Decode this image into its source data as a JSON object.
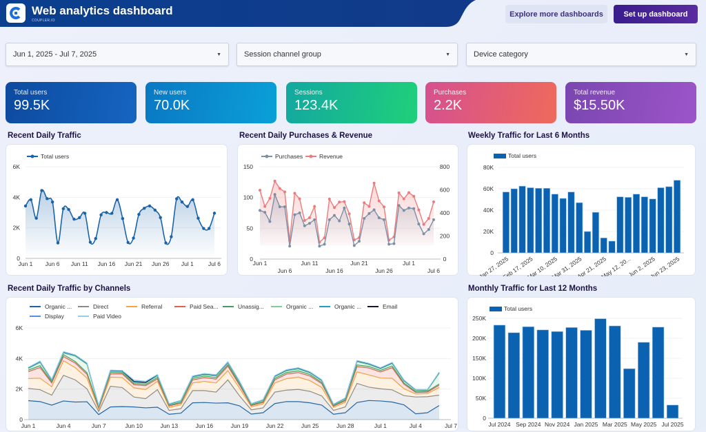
{
  "header": {
    "title": "Web analytics dashboard",
    "brand": "COUPLER.IO",
    "explore_label": "Explore more dashboards",
    "setup_label": "Set up dashboard"
  },
  "filters": [
    {
      "value": "Jun 1, 2025 - Jul 7, 2025"
    },
    {
      "value": "Session channel group"
    },
    {
      "value": "Device category"
    }
  ],
  "kpis": [
    {
      "label": "Total users",
      "value": "99.5K",
      "colors": [
        "#0d4aa0",
        "#1565c0"
      ]
    },
    {
      "label": "New users",
      "value": "70.0K",
      "colors": [
        "#0a78c4",
        "#0aa0d8"
      ]
    },
    {
      "label": "Sessions",
      "value": "123.4K",
      "colors": [
        "#13a8a0",
        "#1fd07a"
      ]
    },
    {
      "label": "Purchases",
      "value": "2.2K",
      "colors": [
        "#d6508f",
        "#ee6a5c"
      ]
    },
    {
      "label": "Total revenue",
      "value": "$15.50K",
      "colors": [
        "#7a46b0",
        "#9c55c8"
      ]
    }
  ],
  "sections": {
    "daily": "Recent Daily Traffic",
    "purch": "Recent Daily Purchases & Revenue",
    "weekly": "Weekly Traffic for Last 6 Months",
    "channels": "Recent Daily Traffic by Channels",
    "monthly": "Monthly Traffic for Last 12 Months"
  },
  "chart_data": [
    {
      "type": "line",
      "id": "daily",
      "series": [
        {
          "name": "Total users",
          "color": "#1a63a8",
          "values": [
            3430,
            3840,
            2630,
            4440,
            3910,
            3690,
            1010,
            3250,
            3200,
            2570,
            2670,
            2950,
            1060,
            1300,
            2850,
            3000,
            2950,
            3840,
            2610,
            1040,
            1330,
            2880,
            3280,
            3430,
            3160,
            2670,
            1010,
            1420,
            3900,
            3690,
            3400,
            3840,
            2630,
            1960,
            1960,
            2960
          ]
        }
      ],
      "x_ticks": [
        "Jun 1",
        "Jun 6",
        "Jun 11",
        "Jun 16",
        "Jun 21",
        "Jun 26",
        "Jul 1",
        "Jul 6"
      ],
      "y_ticks": [
        "0",
        "2K",
        "4K",
        "6K"
      ],
      "ylim": [
        0,
        6000
      ]
    },
    {
      "type": "line",
      "id": "purch",
      "series": [
        {
          "name": "Purchases",
          "color": "#7d8fa6",
          "axis": "left",
          "values": [
            79,
            76,
            61,
            105,
            85,
            85,
            21,
            72,
            75,
            54,
            58,
            64,
            21,
            24,
            64,
            71,
            62,
            83,
            57,
            22,
            29,
            66,
            74,
            80,
            67,
            64,
            24,
            25,
            87,
            79,
            83,
            82,
            57,
            41,
            48,
            64
          ]
        },
        {
          "name": "Revenue",
          "color": "#ee7b7b",
          "axis": "right",
          "values": [
            596,
            456,
            526,
            676,
            612,
            582,
            160,
            570,
            522,
            334,
            358,
            456,
            146,
            184,
            520,
            446,
            494,
            498,
            392,
            166,
            186,
            488,
            456,
            658,
            504,
            452,
            164,
            192,
            574,
            522,
            576,
            544,
            426,
            300,
            352,
            496
          ]
        }
      ],
      "x_ticks": [
        "Jun 1",
        "Jun 6",
        "Jun 11",
        "Jun 16",
        "Jun 21",
        "Jun 26",
        "Jul 1",
        "Jul 6"
      ],
      "y_ticks_left": [
        "0",
        "50",
        "100",
        "150"
      ],
      "y_ticks_right": [
        "0",
        "200",
        "400",
        "600",
        "800"
      ],
      "ylim_left": [
        0,
        150
      ],
      "ylim_right": [
        0,
        800
      ]
    },
    {
      "type": "bar",
      "id": "weekly",
      "series": [
        {
          "name": "Total users",
          "color": "#0a62b0",
          "values": [
            57000,
            60000,
            62500,
            61000,
            60500,
            60500,
            55000,
            51000,
            57000,
            47000,
            20000,
            38000,
            14000,
            11000,
            52500,
            52000,
            55000,
            52500,
            50500,
            61000,
            62000,
            68000
          ]
        }
      ],
      "x_ticks": [
        "Jan 27, 2025",
        "Feb 17, 2025",
        "Mar 10, 2025",
        "Mar 31, 2025",
        "Apr 21, 2025",
        "May 12, 20...",
        "Jun 2, 2025",
        "Jun 23, 2025"
      ],
      "y_ticks": [
        "0",
        "20K",
        "40K",
        "60K",
        "80K"
      ],
      "ylim": [
        0,
        80000
      ]
    },
    {
      "type": "area",
      "stacked": true,
      "id": "channels",
      "series": [
        {
          "name": "Organic ...",
          "color": "#1a63a8",
          "values": [
            1240,
            1180,
            950,
            1220,
            1150,
            1170,
            330,
            830,
            850,
            830,
            770,
            810,
            350,
            420,
            1100,
            1120,
            1080,
            1100,
            900,
            360,
            450,
            1050,
            1180,
            1180,
            1100,
            950,
            350,
            450,
            1120,
            1250,
            1220,
            1150,
            970,
            380,
            450,
            920
          ]
        },
        {
          "name": "Direct",
          "color": "#8a8a8a",
          "values": [
            800,
            780,
            650,
            1680,
            1450,
            850,
            200,
            1350,
            1250,
            650,
            600,
            1150,
            250,
            300,
            800,
            780,
            720,
            1500,
            650,
            280,
            320,
            750,
            750,
            800,
            750,
            600,
            250,
            380,
            1250,
            880,
            800,
            800,
            600,
            1100,
            1050,
            680
          ]
        },
        {
          "name": "Referral",
          "color": "#f0a742",
          "values": [
            650,
            750,
            550,
            950,
            800,
            700,
            150,
            600,
            650,
            600,
            600,
            550,
            200,
            250,
            500,
            600,
            600,
            600,
            500,
            200,
            250,
            600,
            750,
            800,
            700,
            550,
            200,
            300,
            750,
            800,
            700,
            750,
            450,
            200,
            200,
            500
          ]
        },
        {
          "name": "Paid Sea...",
          "color": "#e85d4e",
          "values": [
            450,
            700,
            250,
            280,
            300,
            250,
            100,
            200,
            250,
            200,
            250,
            150,
            100,
            100,
            200,
            250,
            250,
            300,
            200,
            80,
            100,
            200,
            300,
            300,
            300,
            250,
            80,
            100,
            350,
            450,
            400,
            700,
            300,
            100,
            100,
            150
          ]
        },
        {
          "name": "Unassig...",
          "color": "#3f9e5e",
          "values": [
            100,
            120,
            80,
            120,
            100,
            100,
            40,
            100,
            80,
            80,
            80,
            100,
            40,
            60,
            100,
            100,
            100,
            100,
            80,
            40,
            60,
            100,
            100,
            110,
            100,
            80,
            40,
            60,
            110,
            100,
            100,
            110,
            80,
            60,
            60,
            80
          ]
        },
        {
          "name": "Organic ...",
          "color": "#7fcf8e",
          "values": [
            100,
            200,
            80,
            100,
            350,
            550,
            60,
            80,
            60,
            60,
            80,
            100,
            60,
            80,
            80,
            80,
            100,
            100,
            100,
            50,
            80,
            100,
            100,
            120,
            100,
            100,
            50,
            80,
            200,
            120,
            100,
            150,
            120,
            80,
            60,
            700
          ]
        },
        {
          "name": "Organic ...",
          "color": "#19a3c8",
          "values": [
            40,
            60,
            40,
            60,
            50,
            50,
            20,
            40,
            40,
            60,
            40,
            50,
            20,
            30,
            40,
            50,
            50,
            50,
            40,
            20,
            30,
            40,
            50,
            50,
            40,
            40,
            20,
            30,
            50,
            50,
            40,
            50,
            40,
            30,
            30,
            40
          ]
        },
        {
          "name": "Email",
          "color": "#1a1040",
          "values": [
            20,
            20,
            20,
            20,
            20,
            20,
            10,
            20,
            20,
            20,
            20,
            20,
            10,
            10,
            20,
            20,
            20,
            20,
            20,
            10,
            10,
            20,
            20,
            20,
            20,
            20,
            10,
            10,
            20,
            20,
            20,
            20,
            20,
            10,
            10,
            20
          ]
        },
        {
          "name": "Display",
          "color": "#5b8be8",
          "values": [
            10,
            10,
            10,
            10,
            10,
            10,
            5,
            10,
            10,
            80,
            60,
            10,
            5,
            5,
            10,
            10,
            10,
            10,
            10,
            5,
            5,
            10,
            10,
            10,
            10,
            10,
            5,
            5,
            10,
            10,
            10,
            10,
            10,
            5,
            5,
            10
          ]
        },
        {
          "name": "Paid Video",
          "color": "#8fd0e8",
          "values": [
            10,
            10,
            10,
            10,
            10,
            10,
            5,
            10,
            10,
            10,
            10,
            10,
            5,
            5,
            10,
            10,
            10,
            10,
            10,
            5,
            5,
            10,
            10,
            10,
            10,
            10,
            5,
            5,
            10,
            10,
            10,
            10,
            10,
            5,
            5,
            10
          ]
        }
      ],
      "x_ticks": [
        "Jun 1",
        "Jun 4",
        "Jun 7",
        "Jun 10",
        "Jun 13",
        "Jun 16",
        "Jun 19",
        "Jun 22",
        "Jun 25",
        "Jun 28",
        "Jul 1",
        "Jul 4",
        "Jul 7"
      ],
      "y_ticks": [
        "0",
        "2K",
        "4K",
        "6K"
      ],
      "ylim": [
        0,
        6000
      ]
    },
    {
      "type": "bar",
      "id": "monthly",
      "series": [
        {
          "name": "Total users",
          "color": "#0a62b0",
          "values": [
            233000,
            214000,
            229000,
            221000,
            217000,
            227000,
            220000,
            249000,
            231000,
            124000,
            190000,
            228000,
            33000
          ]
        }
      ],
      "x_ticks": [
        "Jul 2024",
        "Sep 2024",
        "Nov 2024",
        "Jan 2025",
        "Mar 2025",
        "May 2025",
        "Jul 2025"
      ],
      "y_ticks": [
        "0",
        "50K",
        "100K",
        "150K",
        "200K",
        "250K"
      ],
      "ylim": [
        0,
        250000
      ]
    }
  ]
}
